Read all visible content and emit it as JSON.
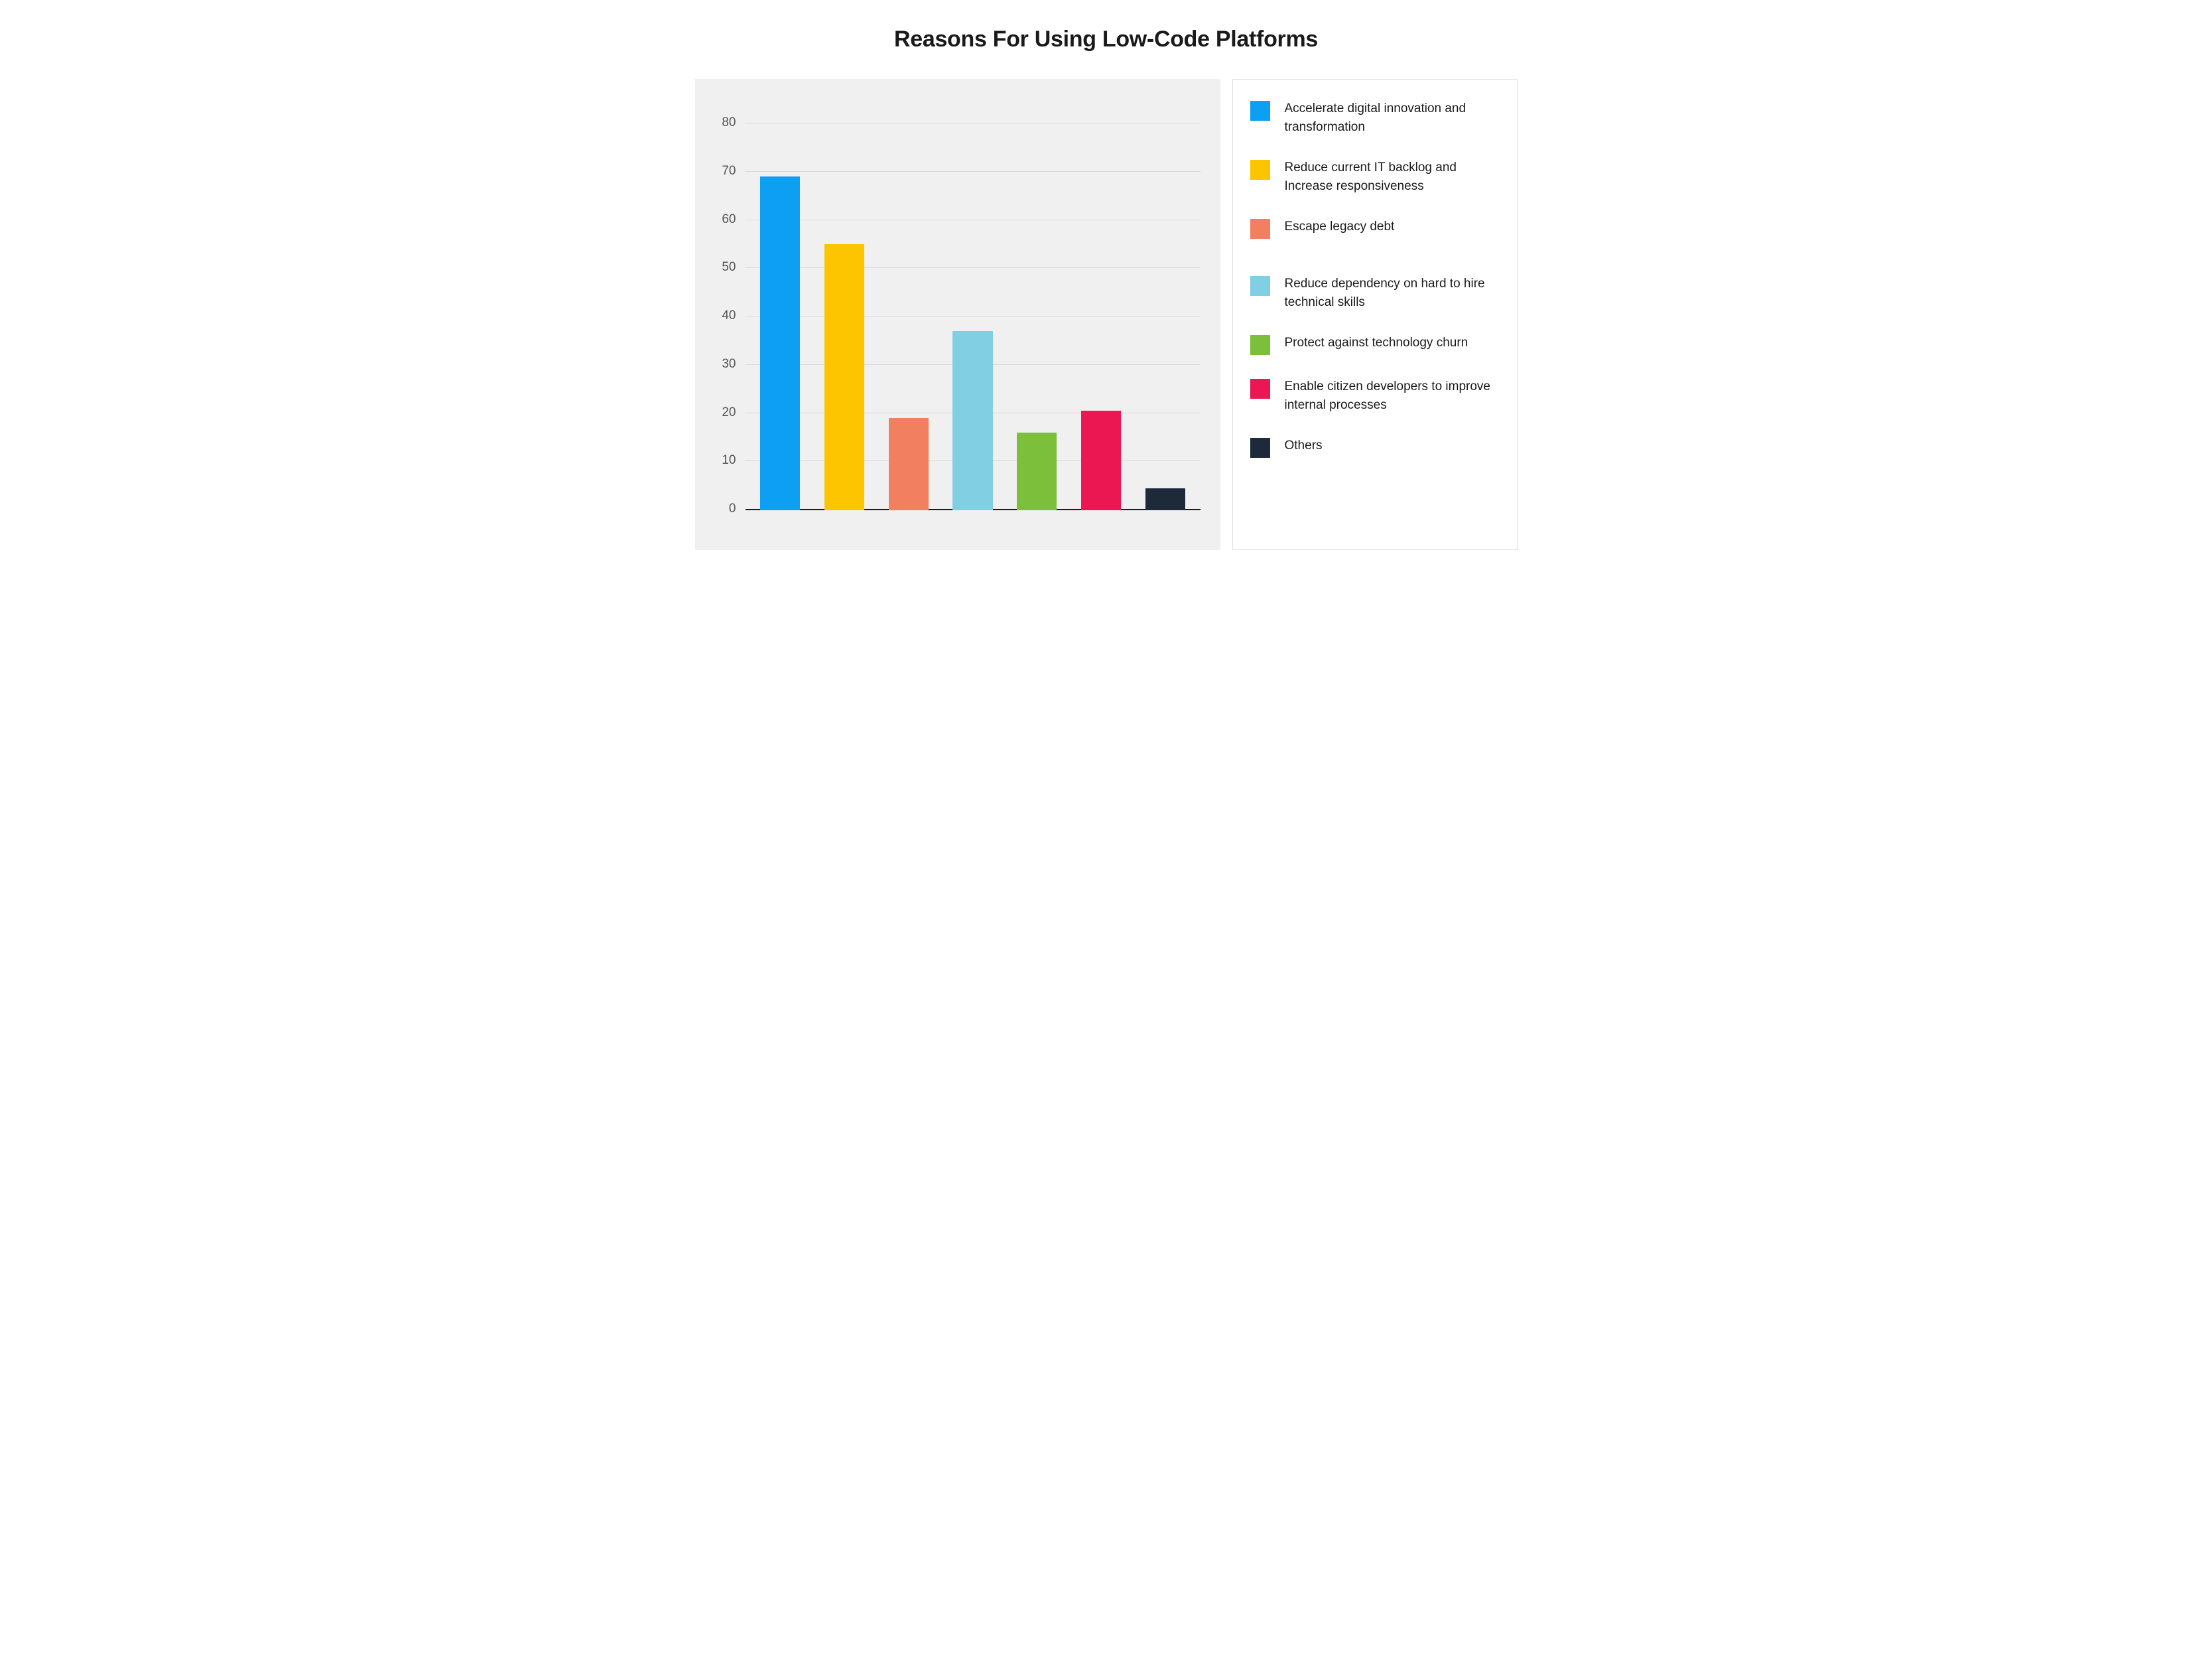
{
  "chart": {
    "type": "bar",
    "title": "Reasons For Using Low-Code Platforms",
    "title_fontsize": 34,
    "title_color": "#1a1a1a",
    "background_color": "#ffffff",
    "plot_background_color": "#f0f0f0",
    "grid_color": "#d9d9d9",
    "axis_color": "#1a1a1a",
    "ylim": [
      0,
      85
    ],
    "yticks": [
      0,
      10,
      20,
      30,
      40,
      50,
      60,
      70,
      80
    ],
    "tick_label_fontsize": 19,
    "tick_label_color": "#555555",
    "bar_width": 0.62,
    "series": [
      {
        "label": "Accelerate digital innovation and transformation",
        "value": 69,
        "color": "#0c9ff2"
      },
      {
        "label": "Reduce current IT backlog and Increase responsiveness",
        "value": 55,
        "color": "#fdc500"
      },
      {
        "label": "Escape legacy debt",
        "value": 19,
        "color": "#f27f60"
      },
      {
        "label": "Reduce dependency on hard to hire technical skills",
        "value": 37,
        "color": "#80cfe2"
      },
      {
        "label": "Protect against technology churn",
        "value": 16,
        "color": "#7cbf3a"
      },
      {
        "label": "Enable citizen developers to improve internal processes",
        "value": 20.5,
        "color": "#ea1752"
      },
      {
        "label": "Others",
        "value": 4.5,
        "color": "#1c2a3a"
      }
    ],
    "legend": {
      "border_color": "#e0e0e0",
      "swatch_size": 30,
      "label_fontsize": 19,
      "label_color": "#1a1a1a",
      "extra_gap_before_index": 3
    }
  }
}
